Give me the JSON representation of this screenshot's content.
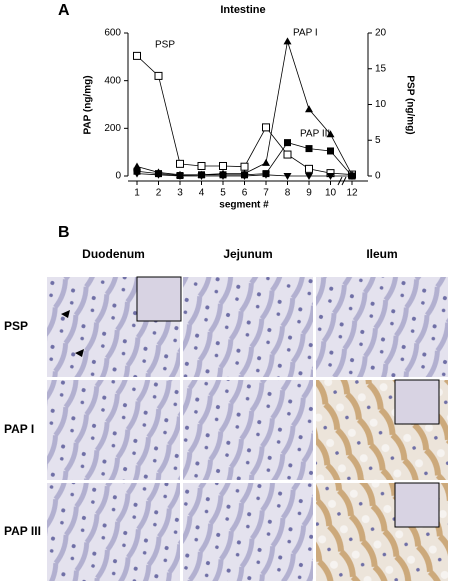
{
  "chart_data": {
    "type": "line",
    "panel_label": "A",
    "title": "Intestine",
    "x_label": "segment #",
    "y_label": "PAP (ng/mg)",
    "y2_label": "PSP (ng/mg)",
    "categories": [
      "1",
      "2",
      "3",
      "4",
      "5",
      "6",
      "7",
      "8",
      "9",
      "10",
      "12"
    ],
    "ylim": [
      0,
      600
    ],
    "yticks": [
      0,
      200,
      400,
      600
    ],
    "y2lim": [
      0,
      20
    ],
    "y2ticks": [
      0,
      5,
      10,
      15,
      20
    ],
    "series": [
      {
        "name": "PSP",
        "color": "#000000",
        "marker": "square-open",
        "axis": "y2",
        "values": [
          16.8,
          14,
          1.7,
          1.4,
          1.4,
          1.3,
          6.8,
          3,
          1,
          0.4,
          0.2
        ]
      },
      {
        "name": "PAP I",
        "color": "#000000",
        "marker": "triangle",
        "values": [
          40,
          15,
          5,
          5,
          10,
          10,
          55,
          565,
          280,
          175,
          5
        ]
      },
      {
        "name": "PAP III",
        "color": "#000000",
        "marker": "square",
        "values": [
          20,
          10,
          2,
          5,
          5,
          5,
          10,
          140,
          115,
          105,
          0
        ]
      },
      {
        "color": "#000000",
        "marker": "triangle-down",
        "values": [
          10,
          5,
          0,
          0,
          0,
          0,
          5,
          0,
          0,
          0,
          0
        ]
      }
    ]
  },
  "panel_b": {
    "label": "B",
    "columns": [
      "Duodenum",
      "Jejunum",
      "Ileum"
    ],
    "rows": [
      "PSP",
      "PAP I",
      "PAP III"
    ]
  }
}
